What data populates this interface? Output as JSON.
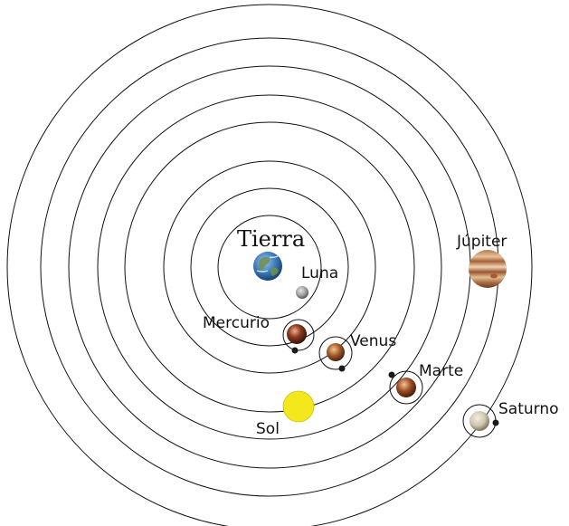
{
  "labels": {
    "tierra": "Tierra",
    "luna": "Luna",
    "mercurio": "Mercurio",
    "venus": "Venus",
    "sol": "Sol",
    "marte": "Marte",
    "jupiter": "Júpiter",
    "saturno": "Saturno"
  },
  "colors": {
    "background": "#ffffff",
    "line": "#111111",
    "sun": "#f2e81c",
    "earth_ocean": "#3a78b8",
    "earth_land": "#6f8f4a",
    "moon": "#9a9a9a",
    "mercury": "#8a3a1e",
    "venus": "#a2582a",
    "mars": "#9c4a22",
    "jupiter": "#c48a5a",
    "saturn": "#cfc7ae"
  }
}
